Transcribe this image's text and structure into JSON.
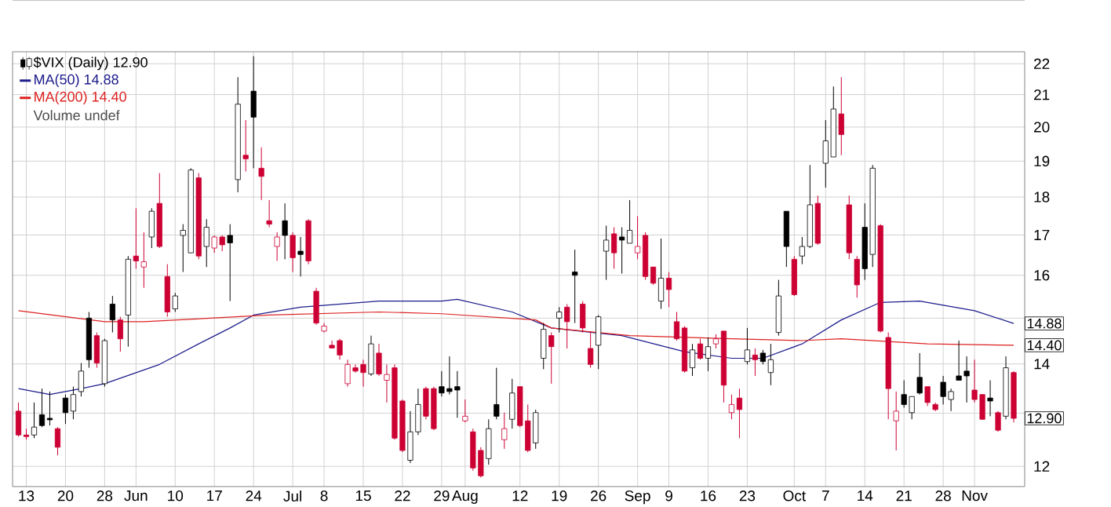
{
  "chart_data": {
    "type": "candlestick",
    "log": "y",
    "grid": true,
    "legend": "top left",
    "ylim": [
      11.64,
      22.4
    ],
    "yticks": [
      12,
      {
        "value": 13,
        "label": null
      },
      14,
      {
        "value": 15,
        "label": null
      },
      16,
      17,
      18,
      19,
      20,
      21,
      22
    ],
    "categories": [
      null,
      "13",
      null,
      null,
      null,
      null,
      "20",
      null,
      null,
      null,
      null,
      "28",
      null,
      null,
      null,
      "Jun",
      null,
      null,
      null,
      null,
      "10",
      null,
      null,
      null,
      null,
      "17",
      null,
      null,
      null,
      null,
      "24",
      null,
      null,
      null,
      null,
      "Jul",
      null,
      null,
      null,
      "8",
      null,
      null,
      null,
      null,
      "15",
      null,
      null,
      null,
      null,
      "22",
      null,
      null,
      null,
      null,
      "29",
      null,
      null,
      "Aug",
      null,
      null,
      null,
      null,
      null,
      null,
      "12",
      null,
      null,
      null,
      null,
      "19",
      null,
      null,
      null,
      null,
      "26",
      null,
      null,
      null,
      null,
      "Sep",
      null,
      null,
      null,
      "9",
      null,
      null,
      null,
      null,
      "16",
      null,
      null,
      null,
      null,
      "23",
      null,
      null,
      null,
      null,
      null,
      "Oct",
      null,
      null,
      null,
      "7",
      null,
      null,
      null,
      null,
      "14",
      null,
      null,
      null,
      null,
      "21",
      null,
      null,
      null,
      null,
      "28",
      null,
      null,
      null,
      "Nov",
      null,
      null,
      null,
      null,
      null
    ],
    "series": [
      {
        "name": "$VIX (Daily) 12.90",
        "color": "#000000",
        "ohlc": [
          [
            13.04,
            13.21,
            12.55,
            12.58
          ],
          [
            12.58,
            12.7,
            12.49,
            12.55
          ],
          [
            12.58,
            13.21,
            12.52,
            12.73
          ],
          [
            12.97,
            13.49,
            12.73,
            12.76
          ],
          [
            12.9,
            13.43,
            12.76,
            12.87
          ],
          [
            12.7,
            12.73,
            12.2,
            12.35
          ],
          [
            13.3,
            13.37,
            12.79,
            13.01
          ],
          [
            13.04,
            13.53,
            12.88,
            13.37
          ],
          [
            13.43,
            14.02,
            13.33,
            13.85
          ],
          [
            15.0,
            15.14,
            13.92,
            14.09
          ],
          [
            14.61,
            14.68,
            13.92,
            14.02
          ],
          [
            13.59,
            14.54,
            13.53,
            14.5
          ],
          [
            15.32,
            15.51,
            14.68,
            14.96
          ],
          [
            14.96,
            15.03,
            14.26,
            14.54
          ],
          [
            15.07,
            16.47,
            14.37,
            16.39
          ],
          [
            16.47,
            17.7,
            16.16,
            16.35
          ],
          [
            16.2,
            17.07,
            15.7,
            16.33
          ],
          [
            16.95,
            17.7,
            16.67,
            17.62
          ],
          [
            17.83,
            18.66,
            16.67,
            16.71
          ],
          [
            15.97,
            16.27,
            15.03,
            15.14
          ],
          [
            15.21,
            15.58,
            15.14,
            15.51
          ],
          [
            16.99,
            17.28,
            16.08,
            17.12
          ],
          [
            16.55,
            18.8,
            16.55,
            18.75
          ],
          [
            18.53,
            18.66,
            16.39,
            16.47
          ],
          [
            16.71,
            17.41,
            16.2,
            17.2
          ],
          [
            16.67,
            16.99,
            16.55,
            16.95
          ],
          [
            16.95,
            16.99,
            16.59,
            16.75
          ],
          [
            16.99,
            17.28,
            15.39,
            16.8
          ],
          [
            18.48,
            21.56,
            18.13,
            20.7
          ],
          [
            19.17,
            20.21,
            18.71,
            19.07
          ],
          [
            21.11,
            22.25,
            18.8,
            20.3
          ],
          [
            18.8,
            19.4,
            17.92,
            18.57
          ],
          [
            17.37,
            17.92,
            17.2,
            17.28
          ],
          [
            16.71,
            17.07,
            16.35,
            16.95
          ],
          [
            17.37,
            17.83,
            16.39,
            16.99
          ],
          [
            16.99,
            17.07,
            16.08,
            16.43
          ],
          [
            16.59,
            16.95,
            15.97,
            16.51
          ],
          [
            17.37,
            17.41,
            16.27,
            16.35
          ],
          [
            15.62,
            15.7,
            14.85,
            14.89
          ],
          [
            14.71,
            14.89,
            14.68,
            14.82
          ],
          [
            14.4,
            14.5,
            14.33,
            14.34
          ],
          [
            14.5,
            14.54,
            14.09,
            14.19
          ],
          [
            13.59,
            14.09,
            13.53,
            13.99
          ],
          [
            13.92,
            13.99,
            13.82,
            13.85
          ],
          [
            13.99,
            14.09,
            13.53,
            13.82
          ],
          [
            13.79,
            14.61,
            13.75,
            14.43
          ],
          [
            14.23,
            14.43,
            13.75,
            13.79
          ],
          [
            13.66,
            13.99,
            13.21,
            13.78
          ],
          [
            13.92,
            13.99,
            12.49,
            12.52
          ],
          [
            13.24,
            13.27,
            12.26,
            12.29
          ],
          [
            12.11,
            13.04,
            12.06,
            12.64
          ],
          [
            12.64,
            13.49,
            12.58,
            13.17
          ],
          [
            13.49,
            13.53,
            12.88,
            12.94
          ],
          [
            13.49,
            13.53,
            12.67,
            12.7
          ],
          [
            13.53,
            13.85,
            13.33,
            13.4
          ],
          [
            13.49,
            14.16,
            13.37,
            13.43
          ],
          [
            13.53,
            13.85,
            12.91,
            13.46
          ],
          [
            12.85,
            13.27,
            12.82,
            12.94
          ],
          [
            12.64,
            12.7,
            11.92,
            11.97
          ],
          [
            12.29,
            12.35,
            11.8,
            11.83
          ],
          [
            12.14,
            12.88,
            12.03,
            12.7
          ],
          [
            13.17,
            13.92,
            12.88,
            12.94
          ],
          [
            12.49,
            13.01,
            12.32,
            12.7
          ],
          [
            12.88,
            13.69,
            12.7,
            13.4
          ],
          [
            13.53,
            13.53,
            12.73,
            12.76
          ],
          [
            12.85,
            13.17,
            12.26,
            12.29
          ],
          [
            12.43,
            13.07,
            12.32,
            13.01
          ],
          [
            14.12,
            14.89,
            13.89,
            14.75
          ],
          [
            14.61,
            14.68,
            13.59,
            14.37
          ],
          [
            15.0,
            15.25,
            14.68,
            15.14
          ],
          [
            15.25,
            15.32,
            14.33,
            14.92
          ],
          [
            16.08,
            16.63,
            14.89,
            16.0
          ],
          [
            15.32,
            15.39,
            14.68,
            14.78
          ],
          [
            14.33,
            14.68,
            13.92,
            13.99
          ],
          [
            14.4,
            15.07,
            13.89,
            15.03
          ],
          [
            16.59,
            17.24,
            15.89,
            16.87
          ],
          [
            17.03,
            17.2,
            16.16,
            16.55
          ],
          [
            16.95,
            17.2,
            16.04,
            16.87
          ],
          [
            16.79,
            17.92,
            16.79,
            17.12
          ],
          [
            16.55,
            17.49,
            16.39,
            16.71
          ],
          [
            16.99,
            17.07,
            15.89,
            15.97
          ],
          [
            16.2,
            16.2,
            15.77,
            15.81
          ],
          [
            15.39,
            16.91,
            15.21,
            15.93
          ],
          [
            15.93,
            16.08,
            15.25,
            15.66
          ],
          [
            14.92,
            15.14,
            14.5,
            14.54
          ],
          [
            14.78,
            14.82,
            13.82,
            13.85
          ],
          [
            13.92,
            14.43,
            13.75,
            14.3
          ],
          [
            14.43,
            14.54,
            14.09,
            14.12
          ],
          [
            14.12,
            14.57,
            13.85,
            14.37
          ],
          [
            14.43,
            14.64,
            14.33,
            14.54
          ],
          [
            14.71,
            14.71,
            13.21,
            13.56
          ],
          [
            13.01,
            13.37,
            12.88,
            13.17
          ],
          [
            13.3,
            13.49,
            12.52,
            13.07
          ],
          [
            14.05,
            14.78,
            13.99,
            14.3
          ],
          [
            14.19,
            14.33,
            13.75,
            14.09
          ],
          [
            14.23,
            14.3,
            13.99,
            14.05
          ],
          [
            13.82,
            14.43,
            13.56,
            14.09
          ],
          [
            14.68,
            15.89,
            14.61,
            15.51
          ],
          [
            17.62,
            17.62,
            16.2,
            16.71
          ],
          [
            16.39,
            16.47,
            15.51,
            15.54
          ],
          [
            16.47,
            16.95,
            16.27,
            16.71
          ],
          [
            16.71,
            18.89,
            16.67,
            17.79
          ],
          [
            17.83,
            18.04,
            16.75,
            16.79
          ],
          [
            18.94,
            20.21,
            18.26,
            19.59
          ],
          [
            19.12,
            21.26,
            19.12,
            20.55
          ],
          [
            20.4,
            21.56,
            19.17,
            19.78
          ],
          [
            17.79,
            18.04,
            16.39,
            16.55
          ],
          [
            16.39,
            16.47,
            15.47,
            15.77
          ],
          [
            17.2,
            17.83,
            15.89,
            16.16
          ],
          [
            16.51,
            18.89,
            16.2,
            18.8
          ],
          [
            17.24,
            17.28,
            14.68,
            14.71
          ],
          [
            14.57,
            14.68,
            12.88,
            13.49
          ],
          [
            12.85,
            13.43,
            12.29,
            13.04
          ],
          [
            13.37,
            13.66,
            13.11,
            13.17
          ],
          [
            13.01,
            13.33,
            12.88,
            13.33
          ],
          [
            13.72,
            14.23,
            13.37,
            13.4
          ],
          [
            13.53,
            13.53,
            13.14,
            13.21
          ],
          [
            13.17,
            13.21,
            13.04,
            13.07
          ],
          [
            13.62,
            13.75,
            13.17,
            13.33
          ],
          [
            13.27,
            13.49,
            13.04,
            13.43
          ],
          [
            13.75,
            14.5,
            13.66,
            13.66
          ],
          [
            13.85,
            14.16,
            13.21,
            13.75
          ],
          [
            13.46,
            14.09,
            13.21,
            13.27
          ],
          [
            13.37,
            13.37,
            12.88,
            12.88
          ],
          [
            13.3,
            13.66,
            12.94,
            13.24
          ],
          [
            13.01,
            13.04,
            12.64,
            12.67
          ],
          [
            12.94,
            14.16,
            12.88,
            13.92
          ],
          [
            13.82,
            13.85,
            12.82,
            12.9
          ]
        ],
        "colors": [
          "#cc0033",
          "#cc0033",
          "#000000",
          "#000000",
          "#000000",
          "#cc0033",
          "#000000",
          "#000000",
          "#000000",
          "#000000",
          "#cc0033",
          "#000000",
          "#000000",
          "#cc0033",
          "#000000",
          "#cc0033",
          "#cc0033",
          "#000000",
          "#cc0033",
          "#cc0033",
          "#000000",
          "#000000",
          "#000000",
          "#cc0033",
          "#000000",
          "#cc0033",
          "#cc0033",
          "#000000",
          "#000000",
          "#cc0033",
          "#000000",
          "#cc0033",
          "#cc0033",
          "#cc0033",
          "#000000",
          "#cc0033",
          "#000000",
          "#cc0033",
          "#cc0033",
          "#cc0033",
          "#cc0033",
          "#cc0033",
          "#cc0033",
          "#cc0033",
          "#cc0033",
          "#000000",
          "#cc0033",
          "#cc0033",
          "#cc0033",
          "#cc0033",
          "#000000",
          "#000000",
          "#cc0033",
          "#cc0033",
          "#000000",
          "#000000",
          "#000000",
          "#cc0033",
          "#cc0033",
          "#cc0033",
          "#000000",
          "#000000",
          "#cc0033",
          "#000000",
          "#cc0033",
          "#cc0033",
          "#000000",
          "#000000",
          "#cc0033",
          "#000000",
          "#cc0033",
          "#000000",
          "#cc0033",
          "#cc0033",
          "#000000",
          "#000000",
          "#cc0033",
          "#000000",
          "#000000",
          "#cc0033",
          "#cc0033",
          "#cc0033",
          "#000000",
          "#cc0033",
          "#cc0033",
          "#cc0033",
          "#000000",
          "#cc0033",
          "#000000",
          "#cc0033",
          "#cc0033",
          "#cc0033",
          "#cc0033",
          "#000000",
          "#cc0033",
          "#000000",
          "#000000",
          "#000000",
          "#000000",
          "#cc0033",
          "#000000",
          "#000000",
          "#cc0033",
          "#000000",
          "#000000",
          "#cc0033",
          "#cc0033",
          "#cc0033",
          "#000000",
          "#000000",
          "#cc0033",
          "#cc0033",
          "#cc0033",
          "#000000",
          "#000000",
          "#000000",
          "#cc0033",
          "#cc0033",
          "#000000",
          "#000000",
          "#000000",
          "#000000",
          "#cc0033",
          "#cc0033",
          "#000000",
          "#cc0033",
          "#000000",
          "#cc0033"
        ]
      },
      {
        "name": "MA(50) 14.88",
        "type": "line",
        "color": "#1c1c8c",
        "values": [
          13.49,
          null,
          null,
          null,
          13.37,
          null,
          null,
          null,
          13.49,
          null,
          null,
          13.59,
          null,
          null,
          null,
          null,
          null,
          null,
          13.99,
          null,
          null,
          null,
          null,
          14.43,
          null,
          null,
          null,
          14.78,
          null,
          null,
          15.07,
          null,
          null,
          null,
          null,
          null,
          15.25,
          null,
          null,
          null,
          null,
          null,
          null,
          null,
          null,
          null,
          15.39,
          null,
          null,
          null,
          null,
          null,
          null,
          null,
          15.39,
          null,
          15.43,
          null,
          null,
          null,
          null,
          null,
          null,
          15.14,
          null,
          null,
          null,
          null,
          14.78,
          null,
          null,
          null,
          null,
          null,
          null,
          null,
          null,
          14.61,
          null,
          null,
          null,
          null,
          null,
          null,
          null,
          14.26,
          null,
          null,
          null,
          null,
          null,
          14.12,
          null,
          null,
          null,
          14.12,
          null,
          null,
          null,
          null,
          14.43,
          null,
          null,
          null,
          null,
          14.96,
          null,
          null,
          null,
          null,
          15.36,
          null,
          null,
          null,
          null,
          15.39,
          null,
          null,
          null,
          null,
          null,
          null,
          15.17,
          null,
          null,
          null,
          null,
          14.88
        ]
      },
      {
        "name": "MA(200) 14.40",
        "type": "line",
        "color": "#dd2222",
        "values": [
          15.17,
          null,
          null,
          null,
          null,
          null,
          null,
          null,
          null,
          null,
          null,
          14.92,
          null,
          null,
          null,
          null,
          14.92,
          null,
          null,
          null,
          null,
          null,
          null,
          null,
          null,
          null,
          null,
          null,
          null,
          null,
          null,
          null,
          15.07,
          null,
          null,
          null,
          null,
          null,
          null,
          null,
          null,
          null,
          null,
          null,
          null,
          null,
          15.14,
          null,
          null,
          null,
          null,
          null,
          null,
          null,
          15.1,
          null,
          null,
          null,
          null,
          null,
          null,
          null,
          null,
          null,
          null,
          null,
          14.96,
          null,
          14.78,
          null,
          null,
          null,
          null,
          null,
          null,
          null,
          null,
          null,
          14.61,
          null,
          null,
          null,
          null,
          null,
          null,
          null,
          null,
          null,
          null,
          null,
          null,
          14.54,
          null,
          null,
          null,
          null,
          null,
          null,
          null,
          null,
          14.5,
          null,
          null,
          null,
          null,
          14.54,
          null,
          null,
          null,
          null,
          null,
          null,
          null,
          null,
          null,
          null,
          14.43,
          null,
          null,
          null,
          null,
          null,
          null,
          null,
          null,
          null,
          null,
          14.4
        ]
      }
    ],
    "annotations": [
      "Volume undef",
      {
        "text": "14.88",
        "y": 14.88
      },
      {
        "text": "14.40",
        "y": 14.4
      },
      {
        "text": "12.90",
        "y": 12.9
      }
    ]
  }
}
